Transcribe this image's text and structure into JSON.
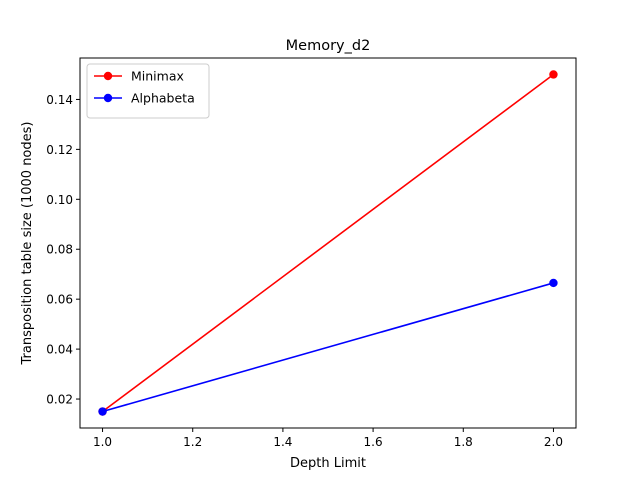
{
  "chart_data": {
    "type": "line",
    "title": "Memory_d2",
    "xlabel": "Depth Limit",
    "ylabel": "Transposition table size (1000 nodes)",
    "xlim": [
      0.95,
      2.05
    ],
    "ylim": [
      0.0084,
      0.1566
    ],
    "x_ticks": [
      1.0,
      1.2,
      1.4,
      1.6,
      1.8,
      2.0
    ],
    "x_tick_labels": [
      "1.0",
      "1.2",
      "1.4",
      "1.6",
      "1.8",
      "2.0"
    ],
    "y_ticks": [
      0.02,
      0.04,
      0.06,
      0.08,
      0.1,
      0.12,
      0.14
    ],
    "y_tick_labels": [
      "0.02",
      "0.04",
      "0.06",
      "0.08",
      "0.10",
      "0.12",
      "0.14"
    ],
    "grid": false,
    "legend_position": "top-left",
    "series": [
      {
        "name": "Minimax",
        "color": "#ff0000",
        "x": [
          1.0,
          2.0
        ],
        "y": [
          0.015,
          0.15
        ]
      },
      {
        "name": "Alphabeta",
        "color": "#0000ff",
        "x": [
          1.0,
          2.0
        ],
        "y": [
          0.015,
          0.0665
        ]
      }
    ]
  }
}
